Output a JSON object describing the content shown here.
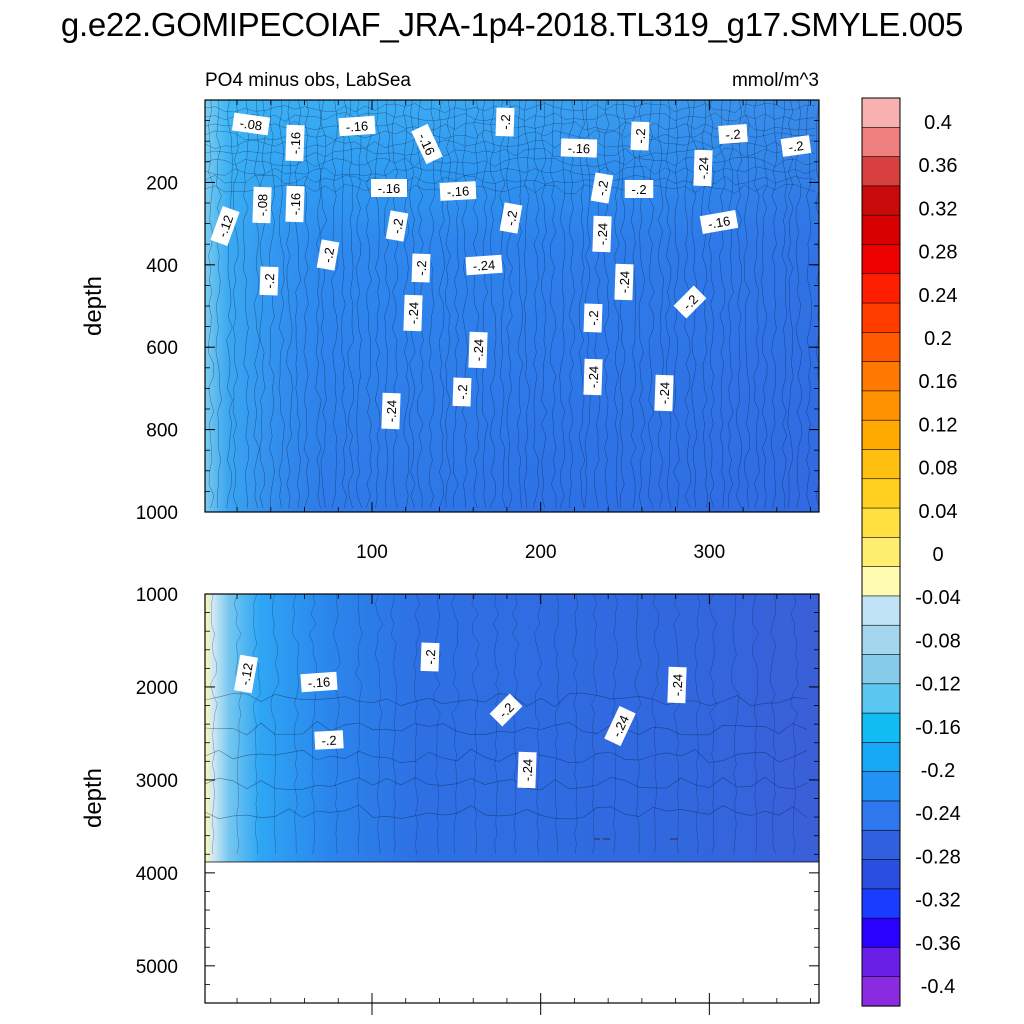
{
  "title": "g.e22.GOMIPECOIAF_JRA-1p4-2018.TL319_g17.SMYLE.005",
  "colors": {
    "levels": [
      "#8a2be2",
      "#6a1fe6",
      "#2a00ff",
      "#1a3cff",
      "#2a4fe0",
      "#3060e0",
      "#2e77ee",
      "#2293f5",
      "#16a8f5",
      "#10bcf2",
      "#5bc6ef",
      "#86cbea",
      "#a4d7ee",
      "#c0e4f5",
      "#fffbb0",
      "#ffef70",
      "#ffe040",
      "#ffd020",
      "#ffbf10",
      "#ffaa00",
      "#ff9200",
      "#ff7800",
      "#ff5a00",
      "#ff3c00",
      "#ff1e00",
      "#ef0000",
      "#d80000",
      "#c80a0a",
      "#d84040",
      "#f08080",
      "#f8b0b0"
    ],
    "line": "#000000"
  },
  "chart_data": [
    {
      "type": "heatmap",
      "panel": "upper",
      "title": "PO4 minus obs, LabSea",
      "units": "mmol/m^3",
      "ylabel": "depth",
      "xlabel": "",
      "xlim": [
        1,
        365
      ],
      "ylim": [
        1000,
        0
      ],
      "xticks": [
        100,
        200,
        300
      ],
      "yticks": [
        200,
        400,
        600,
        800,
        1000
      ],
      "contour_labels": [
        "-.08",
        "-.16",
        "-.16",
        "-.2",
        "-.16",
        "-.16",
        "-.2",
        "-.2",
        "-.2",
        "-.12",
        "-.08",
        "-.16",
        "-.16",
        "-.16",
        "-.2",
        "-.2",
        "-.2",
        "-.24",
        "-.24",
        "-.16",
        "-.2",
        "-.2",
        "-.2",
        "-.24",
        "-.24",
        "-.2",
        "-.2",
        "-.24",
        "-.2",
        "-.24",
        "-.24",
        "-.2",
        "-.24",
        "-.24"
      ],
      "grid": false
    },
    {
      "type": "heatmap",
      "panel": "lower",
      "ylabel": "depth",
      "xlim": [
        1,
        365
      ],
      "ylim": [
        5400,
        1000
      ],
      "yticks": [
        1000,
        2000,
        3000,
        4000,
        5000
      ],
      "data_bottom_depth": 3900,
      "contour_labels": [
        "-.12",
        "-.16",
        "-.2",
        "-.2",
        "-.2",
        "-.24",
        "-.24",
        "-.24"
      ],
      "grid": false
    }
  ],
  "colorbar": {
    "labels": [
      "0.4",
      "0.36",
      "0.32",
      "0.28",
      "0.24",
      "0.2",
      "0.16",
      "0.12",
      "0.08",
      "0.04",
      "0",
      "-0.04",
      "-0.08",
      "-0.12",
      "-0.16",
      "-0.2",
      "-0.24",
      "-0.28",
      "-0.32",
      "-0.36",
      "-0.4"
    ]
  }
}
